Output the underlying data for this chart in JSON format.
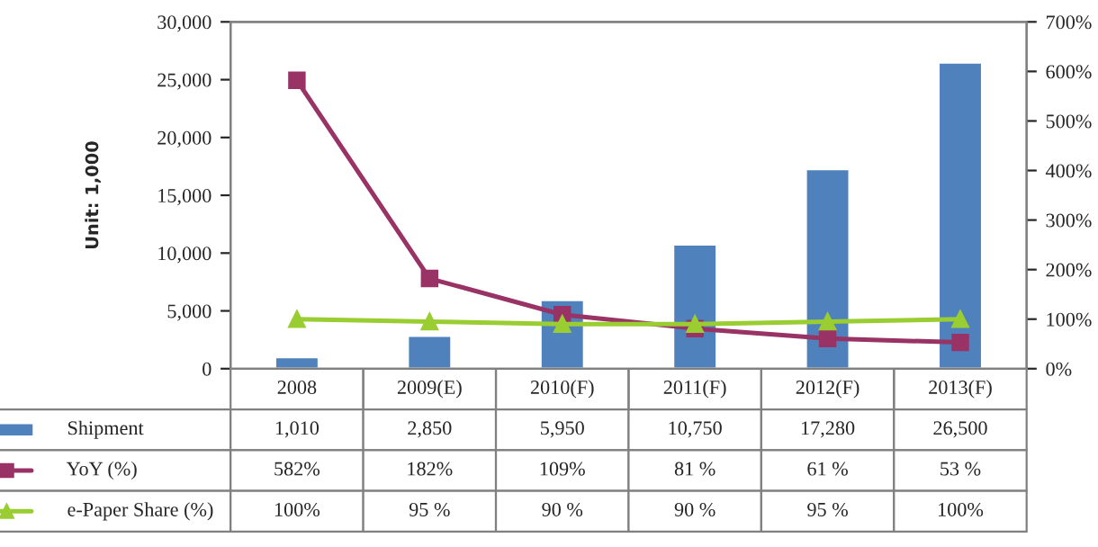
{
  "chart_data": {
    "type": "bar",
    "ylabel": "Unit: 1,000",
    "categories": [
      "2008",
      "2009(E)",
      "2010(F)",
      "2011(F)",
      "2012(F)",
      "2013(F)"
    ],
    "series": [
      {
        "name": "Shipment",
        "color": "#4f81bd",
        "values": [
          1010,
          2850,
          5950,
          10750,
          17280,
          26500
        ],
        "value_labels": [
          "1,010",
          "2,850",
          "5,950",
          "10,750",
          "17,280",
          "26,500"
        ]
      },
      {
        "name": "YoY (%)",
        "type": "line",
        "axis": "y2",
        "marker": "square",
        "color": "#993366",
        "values": [
          582,
          182,
          109,
          81,
          61,
          53
        ],
        "value_labels": [
          "582%",
          "182%",
          "109%",
          "81 %",
          "61 %",
          "53 %"
        ]
      },
      {
        "name": "e-Paper Share (%)",
        "type": "line",
        "axis": "y2",
        "marker": "triangle",
        "color": "#9acd32",
        "values": [
          100,
          95,
          90,
          90,
          95,
          100
        ],
        "value_labels": [
          "100%",
          "95 %",
          "90 %",
          "90 %",
          "95 %",
          "100%"
        ]
      }
    ],
    "ylim": [
      0,
      30000
    ],
    "yticks": [
      {
        "value": 0,
        "label": "0"
      },
      {
        "value": 5000,
        "label": "5,000"
      },
      {
        "value": 10000,
        "label": "10,000"
      },
      {
        "value": 15000,
        "label": "15,000"
      },
      {
        "value": 20000,
        "label": "20,000"
      },
      {
        "value": 25000,
        "label": "25,000"
      },
      {
        "value": 30000,
        "label": "30,000"
      }
    ],
    "y2lim": [
      0,
      700
    ],
    "y2ticks": [
      {
        "value": 0,
        "label": "0%"
      },
      {
        "value": 100,
        "label": "100%"
      },
      {
        "value": 200,
        "label": "200%"
      },
      {
        "value": 300,
        "label": "300%"
      },
      {
        "value": 400,
        "label": "400%"
      },
      {
        "value": 500,
        "label": "500%"
      },
      {
        "value": 600,
        "label": "600%"
      },
      {
        "value": 700,
        "label": "700%"
      }
    ],
    "grid": false,
    "legend": "bottom"
  }
}
